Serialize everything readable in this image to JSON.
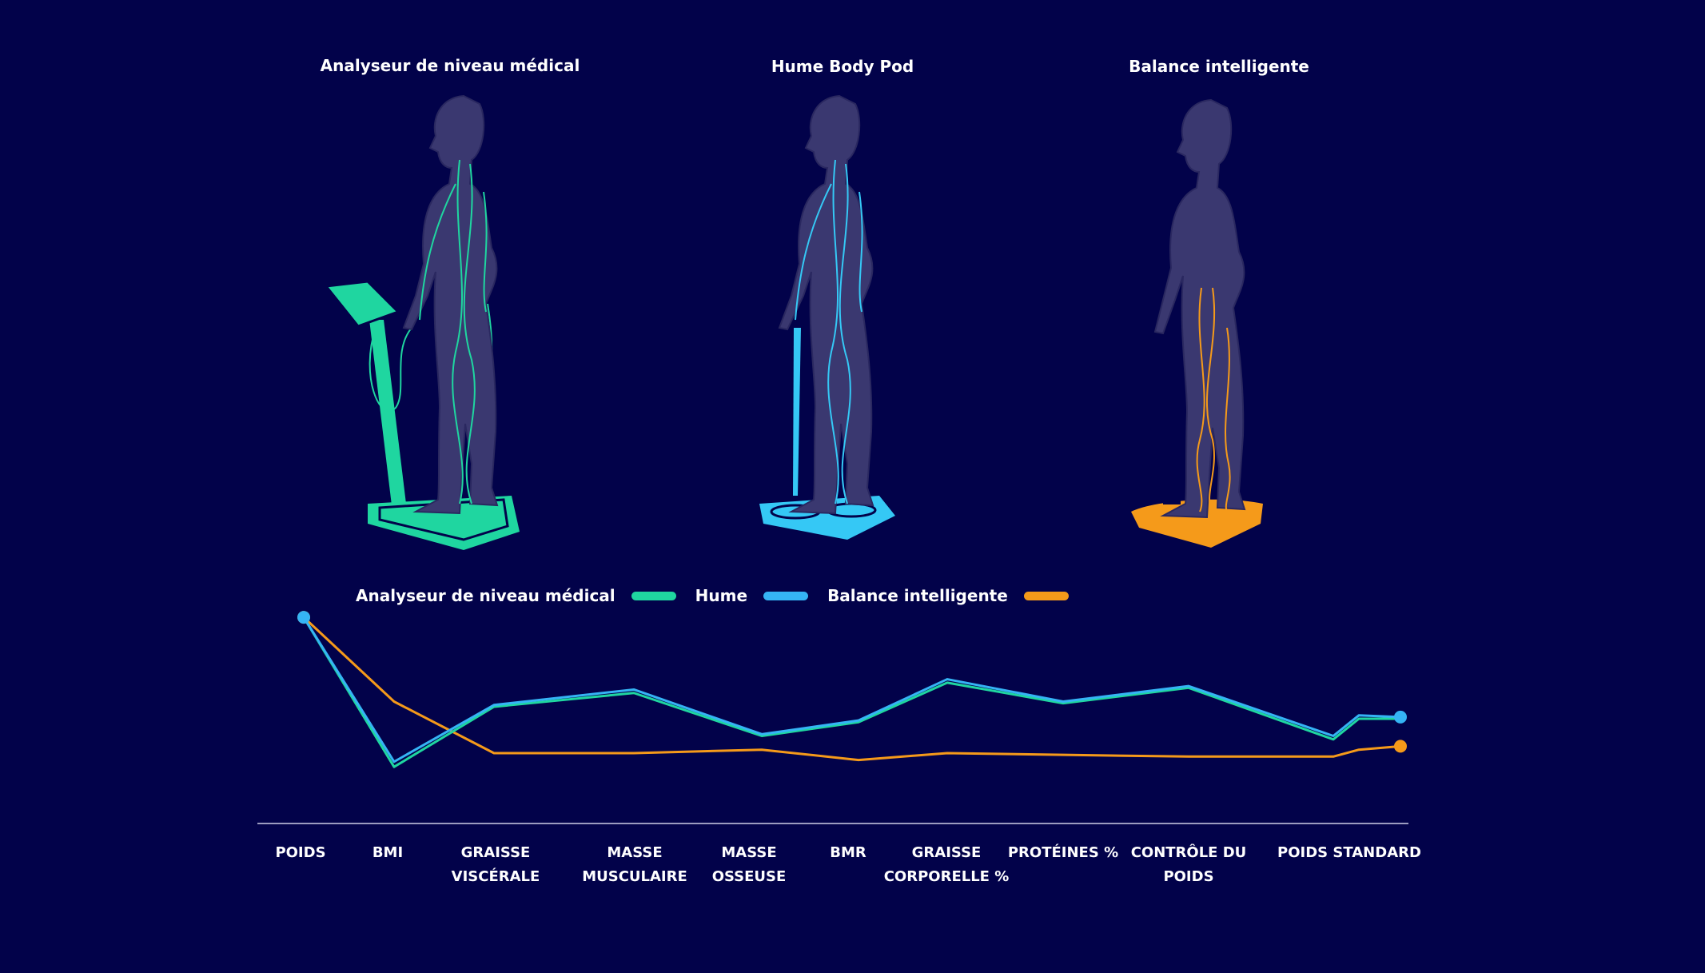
{
  "devices": [
    {
      "title": "Analyseur de niveau médical",
      "color": "#1fd6a0",
      "icon": "medical-analyzer-illustration"
    },
    {
      "title": "Hume Body Pod",
      "color": "#35c8f5",
      "icon": "hume-body-pod-illustration"
    },
    {
      "title": "Balance intelligente",
      "color": "#f59a1a",
      "icon": "smart-scale-illustration"
    }
  ],
  "colors": {
    "background": "#02024a",
    "silhouette": "#3a3870",
    "silhouette_edge": "#2a2860"
  },
  "chart_data": {
    "type": "line",
    "categories": [
      "POIDS",
      "BMI",
      "GRAISSE\nVISCÉRALE",
      "MASSE\nMUSCULAIRE",
      "MASSE\nOSSEUSE",
      "BMR",
      "GRAISSE\nCORPORELLE %",
      "PROTÉINES %",
      "CONTRÔLE DU\nPOIDS",
      "POIDS STANDARD"
    ],
    "x": [
      0,
      1,
      2,
      3,
      4,
      5,
      6,
      7,
      8,
      9,
      10,
      11
    ],
    "series": [
      {
        "name": "Analyseur de niveau médical",
        "color": "#1fd6a0",
        "values": [
          99,
          12,
          47,
          55,
          30,
          38,
          61,
          49,
          58,
          28,
          40,
          40
        ]
      },
      {
        "name": "Hume",
        "color": "#35b4f5",
        "values": [
          99,
          15,
          48,
          57,
          31,
          39,
          63,
          50,
          59,
          30,
          42,
          41
        ]
      },
      {
        "name": "Balance intelligente",
        "color": "#f59a1a",
        "values": [
          99,
          50,
          20,
          20,
          22,
          16,
          20,
          19,
          18,
          18,
          22,
          24
        ]
      }
    ],
    "ylim": [
      0,
      100
    ],
    "grid": false,
    "legend": "top-left"
  }
}
